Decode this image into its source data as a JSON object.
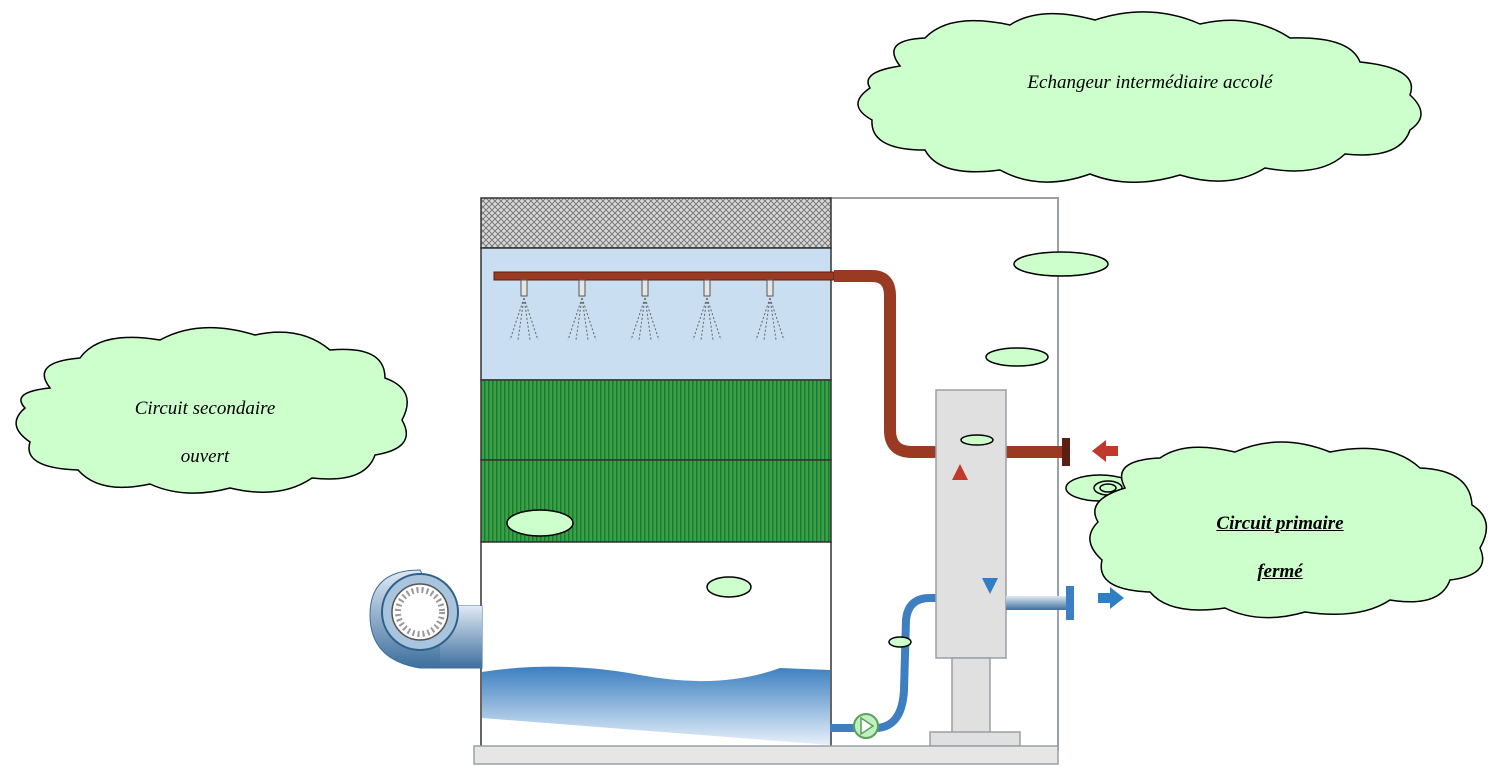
{
  "callouts": {
    "echangeur": {
      "text": "Echangeur intermédiaire accolé"
    },
    "secondaire": {
      "line1": "Circuit secondaire",
      "line2": "ouvert"
    },
    "primaire": {
      "line1": "Circuit primaire",
      "line2": "fermé"
    }
  },
  "colors": {
    "cloud_fill": "#ccffcc",
    "tower_top_cloud": "#e8ffe8",
    "spray_zone": "#c9def0",
    "fill_pack": "#2f9a3e",
    "hot_pipe": "#9a3a22",
    "cold_pipe": "#3d7fc0",
    "arrow_hot": "#c0392b",
    "arrow_cold": "#2f7fc8",
    "frame": "#9aa0a6",
    "base": "#e6e6e6"
  }
}
